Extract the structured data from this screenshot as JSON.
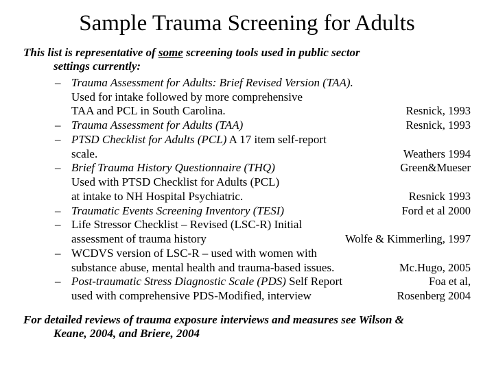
{
  "title": "Sample Trauma Screening for Adults",
  "intro": {
    "prefix": "This list is representative of ",
    "underlined": "some",
    "suffix": " screening tools used in public sector",
    "line2": "settings currently:"
  },
  "items": [
    {
      "lines": [
        {
          "main_ital": "Trauma Assessment for Adults: Brief Revised Version (TAA).",
          "cite": ""
        },
        {
          "main": "Used for intake followed by more comprehensive",
          "cite": ""
        },
        {
          "main": "TAA and PCL in South Carolina.",
          "cite": "Resnick, 1993"
        }
      ]
    },
    {
      "lines": [
        {
          "main_ital": "Trauma Assessment for Adults (TAA)",
          "cite": "Resnick, 1993"
        }
      ]
    },
    {
      "lines": [
        {
          "main_ital": "PTSD Checklist for Adults (PCL)",
          "main_after": " A 17 item self-report",
          "cite": ""
        },
        {
          "main": "scale.",
          "cite": "Weathers 1994"
        }
      ]
    },
    {
      "lines": [
        {
          "main_ital": "Brief Trauma History Questionnaire (THQ)",
          "cite": "Green&Mueser"
        },
        {
          "main": "Used with PTSD Checklist for Adults (PCL)",
          "cite": ""
        },
        {
          "main": "at intake to NH Hospital Psychiatric.",
          "cite": "Resnick 1993"
        }
      ]
    },
    {
      "lines": [
        {
          "main_ital": "Traumatic Events Screening Inventory (TESI)",
          "cite": "Ford et al 2000"
        }
      ]
    },
    {
      "lines": [
        {
          "main": "Life Stressor Checklist – Revised (LSC-R) Initial",
          "cite": ""
        },
        {
          "main": "assessment of trauma history",
          "cite": "Wolfe & Kimmerling, 1997"
        }
      ]
    },
    {
      "lines": [
        {
          "main": "WCDVS version of LSC-R – used with women with",
          "cite": ""
        },
        {
          "main": "substance abuse, mental health and trauma-based issues.",
          "cite": "Mc.Hugo, 2005"
        }
      ]
    },
    {
      "lines": [
        {
          "main_ital": "Post-traumatic Stress Diagnostic Scale (PDS)",
          "main_after": " Self Report",
          "cite": "Foa et al,"
        },
        {
          "main": "used with comprehensive PDS-Modified, interview",
          "cite": "Rosenberg 2004"
        }
      ]
    }
  ],
  "footer": {
    "line1": "For detailed reviews of trauma exposure interviews and measures see Wilson &",
    "line2": "Keane, 2004, and Briere, 2004"
  }
}
